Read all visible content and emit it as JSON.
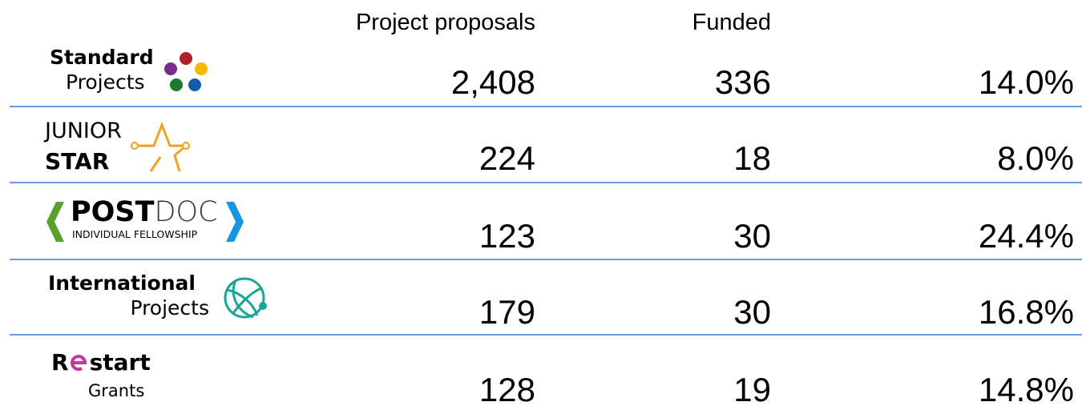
{
  "header": {
    "columns": [
      "Project proposals",
      "Funded"
    ]
  },
  "table": {
    "rows": [
      {
        "logo": {
          "lines": [
            [
              "Standard"
            ],
            [
              "Projects"
            ]
          ]
        },
        "cells": [
          "2,408",
          "336",
          "14.0%"
        ]
      },
      {
        "logo": {
          "lines": [
            [
              "JUNIOR"
            ],
            [
              "STAR"
            ]
          ]
        },
        "cells": [
          "224",
          "18",
          "8.0%"
        ]
      },
      {
        "logo": {
          "lines": [
            [
              "POST",
              "DOC"
            ],
            [
              "INDIVIDUAL FELLOWSHIP"
            ]
          ]
        },
        "cells": [
          "123",
          "30",
          "24.4%"
        ]
      },
      {
        "logo": {
          "lines": [
            [
              "International"
            ],
            [
              "Projects"
            ]
          ]
        },
        "cells": [
          "179",
          "30",
          "16.8%"
        ]
      },
      {
        "logo": {
          "lines": [
            [
              "R",
              "start"
            ],
            [
              "Grants"
            ]
          ]
        },
        "cells": [
          "128",
          "19",
          "14.8%"
        ]
      }
    ]
  }
}
